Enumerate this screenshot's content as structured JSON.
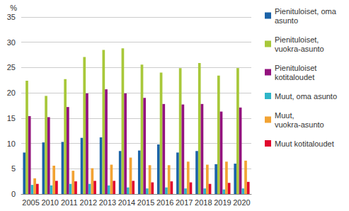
{
  "chart_data": {
    "type": "bar",
    "ylabel": "%",
    "categories": [
      "2005",
      "2010",
      "2011",
      "2012",
      "2013",
      "2014",
      "2015",
      "2016",
      "2017",
      "2018",
      "2019",
      "2020"
    ],
    "series": [
      {
        "name": "Pienituloiset, oma asunto",
        "color": "#1b63a8",
        "values": [
          8.2,
          10.2,
          10.3,
          11.1,
          11.2,
          8.5,
          8.6,
          9.8,
          8.2,
          8.5,
          5.9,
          6.0
        ]
      },
      {
        "name": "Pienituloiset, vuokra-asunto",
        "color": "#a8c83a",
        "values": [
          22.4,
          19.4,
          22.7,
          27.1,
          28.5,
          28.8,
          25.6,
          24.0,
          24.9,
          25.9,
          23.4,
          24.9
        ]
      },
      {
        "name": "Pienituloiset kotitaloudet",
        "color": "#93127e",
        "values": [
          15.4,
          15.2,
          17.2,
          19.9,
          20.7,
          19.9,
          19.0,
          17.8,
          17.7,
          17.8,
          16.3,
          17.1
        ]
      },
      {
        "name": "Muut, oma asunto",
        "color": "#2fb5c8",
        "values": [
          1.8,
          1.7,
          2.0,
          2.0,
          1.7,
          1.3,
          1.1,
          1.3,
          1.1,
          1.1,
          0.9,
          1.1
        ]
      },
      {
        "name": "Muut, vuokra-asunto",
        "color": "#f2a333",
        "values": [
          3.1,
          5.6,
          4.6,
          5.1,
          5.8,
          7.2,
          5.7,
          5.7,
          6.4,
          5.8,
          6.4,
          6.6
        ]
      },
      {
        "name": "Muut kotitaloudet",
        "color": "#e1062e",
        "values": [
          2.0,
          2.6,
          2.5,
          2.6,
          2.6,
          2.6,
          2.3,
          2.5,
          2.3,
          2.0,
          2.2,
          2.4
        ]
      }
    ],
    "ylim": [
      0,
      35
    ],
    "yticks": [
      0,
      5,
      10,
      15,
      20,
      25,
      30,
      35
    ],
    "grid": true,
    "legend": "right"
  }
}
